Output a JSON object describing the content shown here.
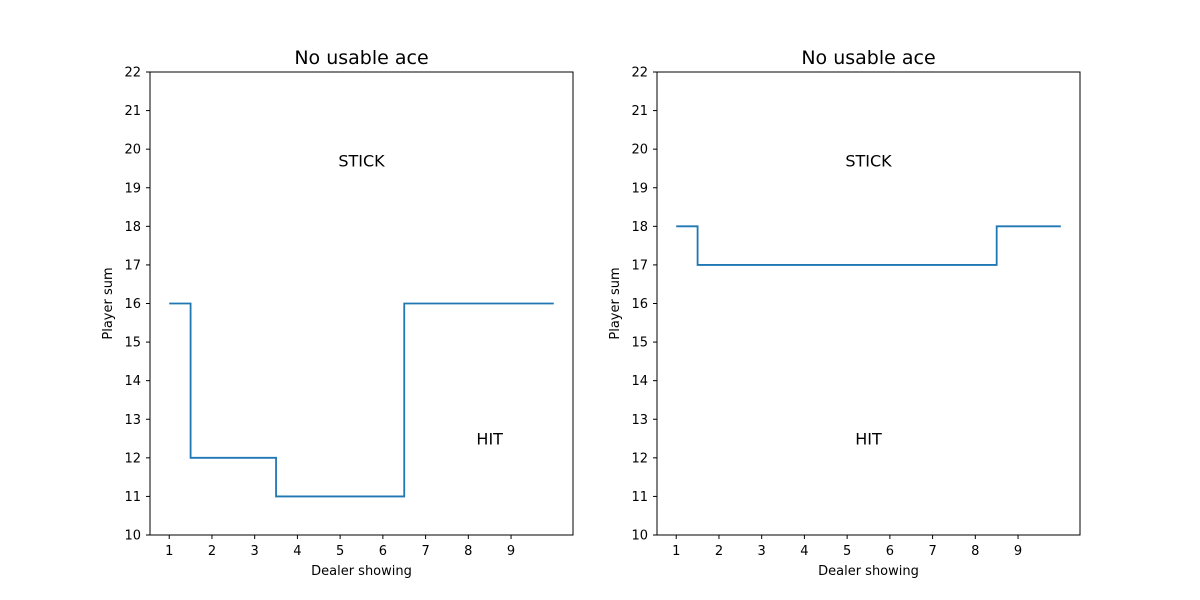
{
  "chart_data": [
    {
      "type": "line",
      "title": "No usable ace",
      "xlabel": "Dealer showing",
      "ylabel": "Player sum",
      "xlim": [
        0.55,
        10.45
      ],
      "ylim": [
        10,
        22
      ],
      "xticks": [
        1,
        2,
        3,
        4,
        5,
        6,
        7,
        8,
        9
      ],
      "yticks": [
        10,
        11,
        12,
        13,
        14,
        15,
        16,
        17,
        18,
        19,
        20,
        21,
        22
      ],
      "step": "mid",
      "grid": false,
      "x": [
        1,
        2,
        3,
        4,
        5,
        6,
        7,
        8,
        9,
        10
      ],
      "series": [
        {
          "name": "",
          "color": "#1f77b4",
          "values": [
            16,
            12,
            12,
            11,
            11,
            11,
            16,
            16,
            16,
            16
          ]
        }
      ],
      "annotations": [
        {
          "text": "STICK",
          "x": 5.5,
          "y": 19.7
        },
        {
          "text": "HIT",
          "x": 8.5,
          "y": 12.5
        }
      ]
    },
    {
      "type": "line",
      "title": "No usable ace",
      "xlabel": "Dealer showing",
      "ylabel": "Player sum",
      "xlim": [
        0.55,
        10.45
      ],
      "ylim": [
        10,
        22
      ],
      "xticks": [
        1,
        2,
        3,
        4,
        5,
        6,
        7,
        8,
        9
      ],
      "yticks": [
        10,
        11,
        12,
        13,
        14,
        15,
        16,
        17,
        18,
        19,
        20,
        21,
        22
      ],
      "step": "mid",
      "grid": false,
      "x": [
        1,
        2,
        3,
        4,
        5,
        6,
        7,
        8,
        9,
        10
      ],
      "series": [
        {
          "name": "",
          "color": "#1f77b4",
          "values": [
            18,
            17,
            17,
            17,
            17,
            17,
            17,
            17,
            18,
            18
          ]
        }
      ],
      "annotations": [
        {
          "text": "STICK",
          "x": 5.5,
          "y": 19.7
        },
        {
          "text": "HIT",
          "x": 5.5,
          "y": 12.5
        }
      ]
    }
  ]
}
